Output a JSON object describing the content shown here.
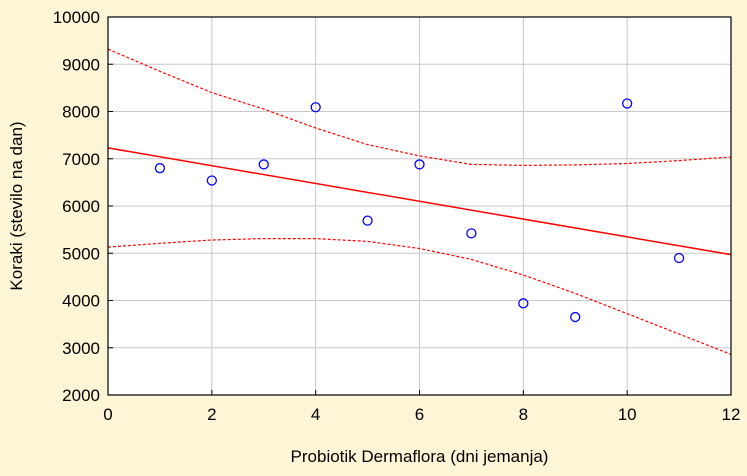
{
  "chart_data": {
    "type": "scatter",
    "xlabel": "Probiotik Dermaflora (dni jemanja)",
    "ylabel": "Koraki (stevilo na dan)",
    "xlim": [
      0,
      12
    ],
    "ylim": [
      2000,
      10000
    ],
    "x_ticks": [
      0,
      2,
      4,
      6,
      8,
      10,
      12
    ],
    "y_ticks": [
      2000,
      3000,
      4000,
      5000,
      6000,
      7000,
      8000,
      9000,
      10000
    ],
    "grid": true,
    "colors": {
      "points": "#0000ff",
      "fit": "#ff0000",
      "grid": "#c8c8c8",
      "plot_bg": "#ffffff",
      "page_bg": "#fdf6d6"
    },
    "points": [
      {
        "x": 1,
        "y": 6800
      },
      {
        "x": 2,
        "y": 6540
      },
      {
        "x": 3,
        "y": 6880
      },
      {
        "x": 4,
        "y": 8090
      },
      {
        "x": 5,
        "y": 5690
      },
      {
        "x": 6,
        "y": 6880
      },
      {
        "x": 7,
        "y": 5420
      },
      {
        "x": 8,
        "y": 3940
      },
      {
        "x": 9,
        "y": 3650
      },
      {
        "x": 10,
        "y": 8170
      },
      {
        "x": 11,
        "y": 4900
      }
    ],
    "fit_line": {
      "x": [
        0,
        12
      ],
      "y": [
        7230,
        4970
      ]
    },
    "confidence_upper": {
      "x": [
        0,
        1,
        2,
        3,
        4,
        5,
        6,
        7,
        8,
        9,
        10,
        11,
        12
      ],
      "y": [
        9320,
        8850,
        8400,
        8050,
        7650,
        7300,
        7060,
        6880,
        6860,
        6870,
        6900,
        6960,
        7040
      ]
    },
    "confidence_lower": {
      "x": [
        0,
        1,
        2,
        3,
        4,
        5,
        6,
        7,
        8,
        9,
        10,
        11,
        12
      ],
      "y": [
        5130,
        5210,
        5280,
        5310,
        5310,
        5250,
        5100,
        4870,
        4540,
        4150,
        3720,
        3290,
        2860
      ]
    }
  }
}
